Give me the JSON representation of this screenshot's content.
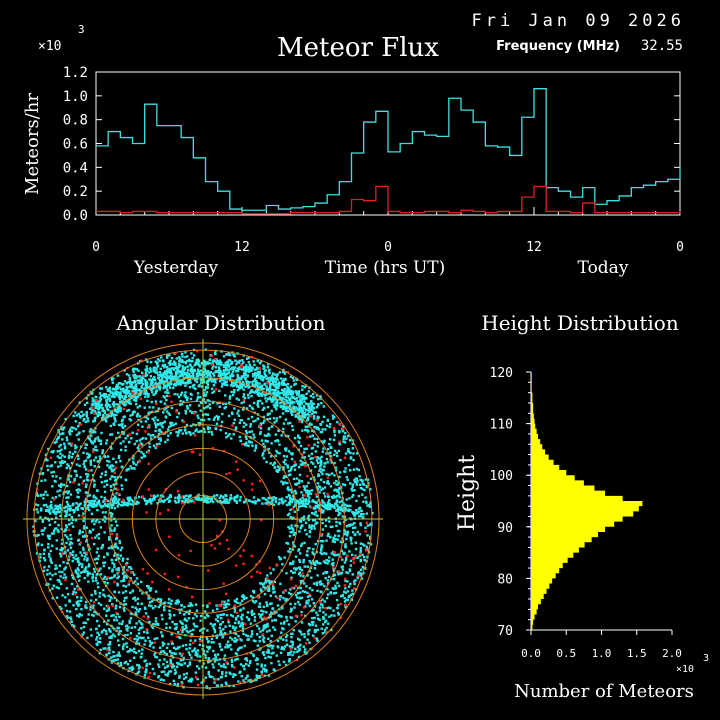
{
  "header": {
    "date": "Fri Jan 09 2026",
    "title": "Meteor Flux",
    "frequency_label": "Frequency (MHz)",
    "frequency_value": "32.55"
  },
  "colors": {
    "background": "#000000",
    "axis": "#ffffff",
    "flux_line": "#40e0e0",
    "flux_low_line": "#e02020",
    "height_bars": "#ffff00",
    "scatter_points": "#30e8e8",
    "scatter_red": "#ff2020",
    "polar_rings": "#e08020",
    "polar_grid": "#b8c838"
  },
  "chart_data": [
    {
      "type": "line",
      "title": "Meteor Flux",
      "ylabel": "Meteors/hr",
      "y_multiplier": "×10",
      "y_multiplier_exp": "3",
      "ylim": [
        0,
        1.2
      ],
      "yticks": [
        "0.0",
        "0.2",
        "0.4",
        "0.6",
        "0.8",
        "1.0",
        "1.2"
      ],
      "xticks": [
        "0",
        "12",
        "0",
        "12",
        "0"
      ],
      "xlabels": {
        "left": "Yesterday",
        "center": "Time (hrs UT)",
        "right": "Today"
      },
      "step": true,
      "series": [
        {
          "color": "#40e0e0",
          "x": [
            0,
            1,
            2,
            3,
            4,
            5,
            6,
            7,
            8,
            9,
            10,
            11,
            12,
            13,
            14,
            15,
            16,
            17,
            18,
            19,
            20,
            21,
            22,
            23,
            24,
            25,
            26,
            27,
            28,
            29,
            30,
            31,
            32,
            33,
            34,
            35,
            36,
            37,
            38,
            39,
            40,
            41,
            42,
            43,
            44,
            45,
            46,
            47,
            48
          ],
          "values": [
            0.58,
            0.7,
            0.65,
            0.6,
            0.93,
            0.75,
            0.75,
            0.65,
            0.48,
            0.28,
            0.2,
            0.05,
            0.04,
            0.04,
            0.08,
            0.05,
            0.06,
            0.07,
            0.1,
            0.17,
            0.28,
            0.52,
            0.78,
            0.87,
            0.53,
            0.6,
            0.7,
            0.67,
            0.66,
            0.98,
            0.88,
            0.78,
            0.58,
            0.57,
            0.5,
            0.82,
            1.06,
            0.23,
            0.2,
            0.15,
            0.23,
            0.09,
            0.12,
            0.16,
            0.23,
            0.25,
            0.28,
            0.3,
            0.4
          ]
        },
        {
          "color": "#e02020",
          "x": [
            0,
            1,
            2,
            3,
            4,
            5,
            6,
            7,
            8,
            9,
            10,
            11,
            12,
            13,
            14,
            15,
            16,
            17,
            18,
            19,
            20,
            21,
            22,
            23,
            24,
            25,
            26,
            27,
            28,
            29,
            30,
            31,
            32,
            33,
            34,
            35,
            36,
            37,
            38,
            39,
            40,
            41,
            42,
            43,
            44,
            45,
            46,
            47,
            48
          ],
          "values": [
            0.03,
            0.03,
            0.02,
            0.03,
            0.03,
            0.02,
            0.02,
            0.02,
            0.02,
            0.02,
            0.02,
            0.02,
            0.01,
            0.01,
            0.01,
            0.01,
            0.02,
            0.02,
            0.02,
            0.02,
            0.03,
            0.13,
            0.12,
            0.24,
            0.03,
            0.02,
            0.02,
            0.03,
            0.03,
            0.02,
            0.04,
            0.03,
            0.02,
            0.03,
            0.03,
            0.15,
            0.24,
            0.03,
            0.03,
            0.02,
            0.1,
            0.02,
            0.02,
            0.02,
            0.02,
            0.02,
            0.02,
            0.02,
            0.03
          ]
        }
      ]
    },
    {
      "type": "scatter",
      "title": "Angular Distribution",
      "polar": true,
      "ring_count": 7,
      "note_density": "dense cyan points with red points, concentrated in upper hemisphere band and along horizontal arc"
    },
    {
      "type": "bar",
      "orientation": "horizontal",
      "title": "Height Distribution",
      "ylabel": "Height",
      "xlabel": "Number of Meteors",
      "x_multiplier": "×10",
      "x_multiplier_exp": "3",
      "ylim": [
        70,
        120
      ],
      "xlim": [
        0,
        2.0
      ],
      "yticks": [
        "70",
        "80",
        "90",
        "100",
        "110",
        "120"
      ],
      "xticks": [
        "0.0",
        "0.5",
        "1.0",
        "1.5",
        "2.0"
      ],
      "heights": [
        70,
        71,
        72,
        73,
        74,
        75,
        76,
        77,
        78,
        79,
        80,
        81,
        82,
        83,
        84,
        85,
        86,
        87,
        88,
        89,
        90,
        91,
        92,
        93,
        94,
        95,
        96,
        97,
        98,
        99,
        100,
        101,
        102,
        103,
        104,
        105,
        106,
        107,
        108,
        109,
        110,
        111,
        112,
        113,
        114,
        115,
        116,
        117,
        118,
        119
      ],
      "values": [
        0.02,
        0.03,
        0.05,
        0.08,
        0.1,
        0.14,
        0.18,
        0.22,
        0.26,
        0.3,
        0.35,
        0.4,
        0.45,
        0.52,
        0.6,
        0.68,
        0.76,
        0.86,
        0.95,
        1.05,
        1.18,
        1.3,
        1.45,
        1.53,
        1.58,
        1.3,
        1.05,
        0.9,
        0.75,
        0.62,
        0.5,
        0.4,
        0.32,
        0.25,
        0.2,
        0.16,
        0.13,
        0.1,
        0.08,
        0.06,
        0.05,
        0.04,
        0.03,
        0.03,
        0.02,
        0.02,
        0.01,
        0.01,
        0.01,
        0.01
      ]
    }
  ]
}
